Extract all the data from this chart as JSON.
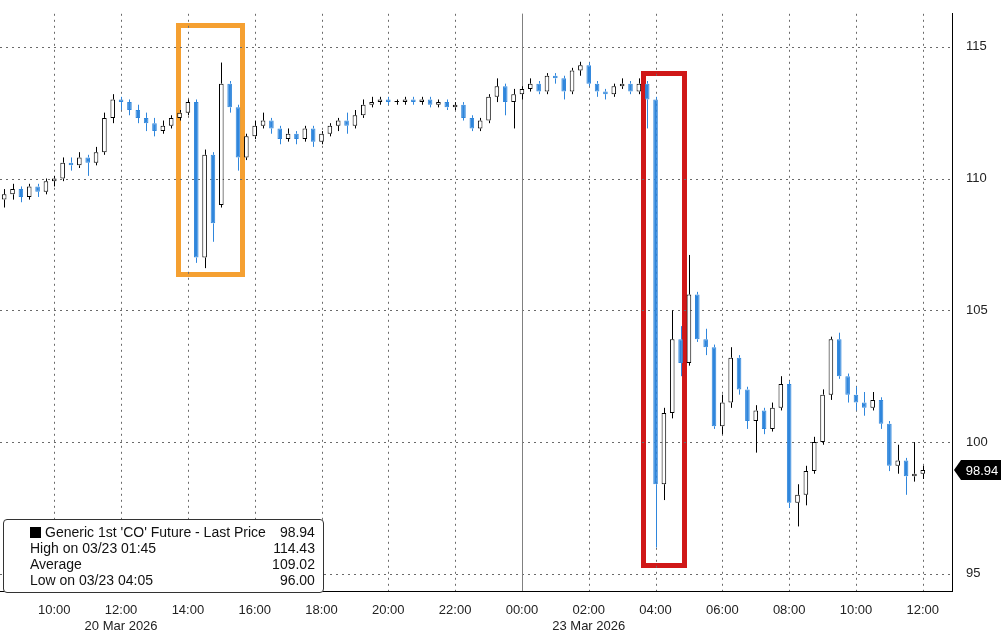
{
  "chart_data": {
    "type": "candlestick",
    "categories": [
      null,
      null,
      null,
      null,
      null,
      null,
      "10:00",
      null,
      null,
      null,
      null,
      null,
      null,
      null,
      "12:00\n20 Mar 2026",
      null,
      null,
      null,
      null,
      null,
      null,
      null,
      "14:00",
      null,
      null,
      null,
      null,
      null,
      null,
      null,
      "16:00",
      null,
      null,
      null,
      null,
      null,
      null,
      null,
      "18:00",
      null,
      null,
      null,
      null,
      null,
      null,
      null,
      "20:00",
      null,
      null,
      null,
      null,
      null,
      null,
      null,
      "22:00",
      null,
      null,
      null,
      null,
      null,
      null,
      null,
      "00:00",
      null,
      null,
      null,
      null,
      null,
      null,
      null,
      "02:00\n23 Mar 2026",
      null,
      null,
      null,
      null,
      null,
      null,
      null,
      "04:00",
      null,
      null,
      null,
      null,
      null,
      null,
      null,
      "06:00",
      null,
      null,
      null,
      null,
      null,
      null,
      null,
      "08:00",
      null,
      null,
      null,
      null,
      null,
      null,
      null,
      "10:00",
      null,
      null,
      null,
      null,
      null,
      null,
      null,
      "12:00",
      null,
      null,
      null
    ],
    "series": [
      {
        "name": "Generic 1st 'CO' Future - Last Price",
        "ohlc": [
          [
            109.2,
            109.6,
            108.9,
            109.4
          ],
          [
            109.4,
            109.8,
            109.2,
            109.6
          ],
          [
            109.6,
            109.7,
            109.1,
            109.3
          ],
          [
            109.3,
            109.8,
            109.2,
            109.7
          ],
          [
            109.7,
            109.8,
            109.3,
            109.5
          ],
          [
            109.5,
            110.0,
            109.4,
            109.9
          ],
          [
            109.9,
            110.1,
            109.7,
            110.0
          ],
          [
            110.0,
            110.8,
            109.9,
            110.6
          ],
          [
            110.6,
            110.8,
            110.3,
            110.5
          ],
          [
            110.5,
            111.0,
            110.4,
            110.8
          ],
          [
            110.8,
            110.9,
            110.1,
            110.6
          ],
          [
            110.6,
            111.2,
            110.5,
            111.0
          ],
          [
            111.0,
            112.5,
            110.9,
            112.3
          ],
          [
            112.3,
            113.2,
            112.1,
            113.0
          ],
          [
            113.0,
            113.1,
            112.6,
            112.9
          ],
          [
            112.9,
            113.0,
            112.4,
            112.6
          ],
          [
            112.6,
            112.8,
            112.1,
            112.3
          ],
          [
            112.3,
            112.5,
            111.8,
            112.1
          ],
          [
            112.1,
            112.3,
            111.6,
            111.8
          ],
          [
            111.8,
            112.2,
            111.7,
            112.0
          ],
          [
            112.0,
            112.4,
            111.9,
            112.3
          ],
          [
            112.3,
            112.6,
            112.2,
            112.5
          ],
          [
            112.5,
            113.0,
            112.4,
            112.9
          ],
          [
            112.9,
            113.0,
            106.8,
            107.0
          ],
          [
            107.0,
            111.1,
            106.6,
            110.9
          ],
          [
            110.9,
            111.0,
            107.6,
            108.3
          ],
          [
            109.0,
            114.4,
            108.9,
            113.6
          ],
          [
            113.6,
            113.7,
            112.5,
            112.7
          ],
          [
            112.7,
            112.8,
            110.3,
            110.8
          ],
          [
            110.8,
            111.7,
            110.7,
            111.6
          ],
          [
            111.6,
            112.2,
            111.5,
            112.0
          ],
          [
            112.0,
            112.5,
            111.9,
            112.2
          ],
          [
            112.2,
            112.3,
            111.7,
            111.9
          ],
          [
            111.9,
            112.0,
            111.3,
            111.5
          ],
          [
            111.5,
            111.9,
            111.4,
            111.7
          ],
          [
            111.7,
            111.8,
            111.3,
            111.5
          ],
          [
            111.5,
            112.0,
            111.4,
            111.9
          ],
          [
            111.9,
            112.0,
            111.2,
            111.4
          ],
          [
            111.4,
            111.8,
            111.3,
            111.7
          ],
          [
            111.7,
            112.1,
            111.6,
            112.0
          ],
          [
            112.0,
            112.3,
            111.8,
            112.2
          ],
          [
            112.2,
            112.5,
            111.7,
            112.0
          ],
          [
            112.0,
            112.6,
            111.9,
            112.4
          ],
          [
            112.4,
            113.0,
            112.3,
            112.8
          ],
          [
            112.8,
            113.1,
            112.7,
            112.9
          ],
          [
            112.9,
            113.1,
            112.8,
            113.0
          ],
          [
            113.0,
            113.1,
            112.8,
            112.9
          ],
          [
            112.9,
            113.0,
            112.8,
            112.9
          ],
          [
            112.9,
            113.1,
            112.8,
            113.0
          ],
          [
            113.0,
            113.1,
            112.8,
            112.9
          ],
          [
            112.9,
            113.1,
            112.8,
            113.0
          ],
          [
            113.0,
            113.1,
            112.7,
            112.8
          ],
          [
            112.8,
            113.0,
            112.7,
            112.9
          ],
          [
            112.9,
            113.0,
            112.6,
            112.7
          ],
          [
            112.7,
            112.9,
            112.6,
            112.8
          ],
          [
            112.8,
            112.9,
            112.2,
            112.3
          ],
          [
            112.3,
            112.4,
            111.8,
            111.9
          ],
          [
            111.9,
            112.3,
            111.8,
            112.2
          ],
          [
            112.2,
            113.2,
            112.1,
            113.1
          ],
          [
            113.1,
            113.8,
            112.9,
            113.5
          ],
          [
            113.5,
            113.6,
            112.4,
            112.9
          ],
          [
            112.9,
            113.4,
            111.9,
            113.2
          ],
          [
            113.2,
            113.5,
            113.0,
            113.4
          ],
          [
            113.4,
            113.8,
            113.3,
            113.6
          ],
          [
            113.6,
            113.7,
            113.2,
            113.3
          ],
          [
            113.3,
            114.0,
            113.2,
            113.9
          ],
          [
            113.9,
            114.0,
            113.6,
            113.8
          ],
          [
            113.8,
            113.9,
            113.0,
            113.3
          ],
          [
            113.3,
            114.2,
            113.2,
            114.1
          ],
          [
            114.1,
            114.43,
            113.9,
            114.3
          ],
          [
            114.3,
            114.4,
            113.5,
            113.6
          ],
          [
            113.6,
            113.7,
            113.1,
            113.3
          ],
          [
            113.3,
            113.4,
            113.0,
            113.2
          ],
          [
            113.2,
            113.6,
            113.1,
            113.5
          ],
          [
            113.5,
            113.8,
            113.4,
            113.6
          ],
          [
            113.6,
            113.7,
            113.2,
            113.3
          ],
          [
            113.3,
            113.8,
            113.2,
            113.6
          ],
          [
            113.6,
            113.7,
            111.9,
            113.0
          ],
          [
            113.0,
            113.1,
            96.0,
            98.4
          ],
          [
            98.4,
            101.3,
            97.8,
            101.1
          ],
          [
            101.1,
            105.0,
            100.9,
            103.9
          ],
          [
            103.9,
            104.4,
            102.5,
            103.0
          ],
          [
            103.0,
            107.1,
            102.9,
            105.6
          ],
          [
            105.6,
            105.7,
            103.8,
            103.9
          ],
          [
            103.9,
            104.3,
            103.3,
            103.6
          ],
          [
            103.6,
            103.7,
            100.5,
            100.6
          ],
          [
            100.6,
            101.8,
            100.3,
            101.5
          ],
          [
            101.5,
            103.6,
            101.3,
            103.2
          ],
          [
            103.2,
            103.3,
            101.8,
            102.0
          ],
          [
            102.0,
            102.1,
            100.5,
            100.8
          ],
          [
            100.8,
            101.4,
            99.6,
            101.2
          ],
          [
            101.2,
            101.3,
            100.3,
            100.5
          ],
          [
            100.5,
            101.5,
            100.4,
            101.3
          ],
          [
            101.3,
            102.5,
            101.2,
            102.2
          ],
          [
            102.2,
            102.3,
            97.5,
            97.7
          ],
          [
            97.7,
            98.4,
            96.8,
            98.0
          ],
          [
            98.0,
            99.1,
            97.6,
            98.9
          ],
          [
            98.9,
            100.2,
            98.8,
            100.0
          ],
          [
            100.0,
            102.0,
            99.9,
            101.8
          ],
          [
            101.8,
            104.0,
            101.6,
            103.9
          ],
          [
            103.9,
            104.15,
            102.4,
            102.5
          ],
          [
            102.5,
            102.6,
            101.5,
            101.8
          ],
          [
            101.8,
            102.1,
            101.2,
            101.5
          ],
          [
            101.5,
            101.9,
            101.0,
            101.3
          ],
          [
            101.3,
            101.9,
            101.2,
            101.6
          ],
          [
            101.6,
            101.7,
            100.5,
            100.7
          ],
          [
            100.7,
            100.8,
            98.9,
            99.1
          ],
          [
            99.1,
            99.9,
            98.8,
            99.3
          ],
          [
            99.3,
            99.4,
            98.0,
            98.7
          ],
          [
            98.7,
            100.0,
            98.5,
            98.8
          ],
          [
            98.8,
            99.1,
            98.6,
            98.94
          ],
          null,
          null,
          null
        ]
      }
    ],
    "ylim": [
      94.35,
      116.25
    ],
    "yticks": [
      95,
      100,
      105,
      110,
      115
    ],
    "grid": true,
    "legend": "bottom left",
    "ref_lines": [
      {
        "axis": "x",
        "value": "00:00",
        "color": "#808080"
      }
    ],
    "annotations": [
      "98.94",
      "High on 03/23 01:45",
      "114.43",
      "Average",
      "109.02",
      "Low on 03/23 04:05",
      "96.00"
    ]
  }
}
